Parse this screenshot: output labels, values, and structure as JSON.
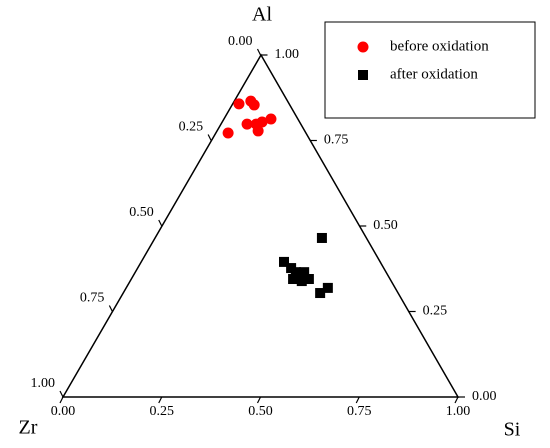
{
  "chart_data": {
    "type": "ternary",
    "vertex_labels": {
      "top": "Al",
      "left": "Zr",
      "right": "Si"
    },
    "si_ticks": [
      {
        "value": 0,
        "label": "0.00"
      },
      {
        "value": 0.25,
        "label": "0.25"
      },
      {
        "value": 0.5,
        "label": "0.50"
      },
      {
        "value": 0.75,
        "label": "0.75"
      },
      {
        "value": 1,
        "label": "1.00"
      }
    ],
    "al_ticks": [
      {
        "value": 0,
        "label": "0.00"
      },
      {
        "value": 0.25,
        "label": "0.25"
      },
      {
        "value": 0.5,
        "label": "0.50"
      },
      {
        "value": 0.75,
        "label": "0.75"
      },
      {
        "value": 1,
        "label": "1.00"
      }
    ],
    "zr_ticks": [
      {
        "value": 0,
        "label": "0.00"
      },
      {
        "value": 0.25,
        "label": "0.25"
      },
      {
        "value": 0.5,
        "label": "0.50"
      },
      {
        "value": 0.75,
        "label": "0.75"
      },
      {
        "value": 1,
        "label": "1.00"
      }
    ],
    "legend": "top-right",
    "series": [
      {
        "name": "before oxidation",
        "color": "#ff0000",
        "marker": "circle",
        "si": [
          0.017,
          0.043,
          0.057,
          0.067,
          0.09,
          0.102,
          0.12,
          0.105,
          0.032
        ],
        "al": [
          0.857,
          0.865,
          0.854,
          0.798,
          0.798,
          0.804,
          0.813,
          0.778,
          0.772
        ]
      },
      {
        "name": "after oxidation",
        "color": "#000000",
        "marker": "square",
        "si": [
          0.423,
          0.362,
          0.389,
          0.407,
          0.423,
          0.428,
          0.45,
          0.41,
          0.435,
          0.499,
          0.511
        ],
        "al": [
          0.465,
          0.395,
          0.377,
          0.365,
          0.354,
          0.365,
          0.345,
          0.345,
          0.339,
          0.304,
          0.319
        ]
      }
    ]
  }
}
